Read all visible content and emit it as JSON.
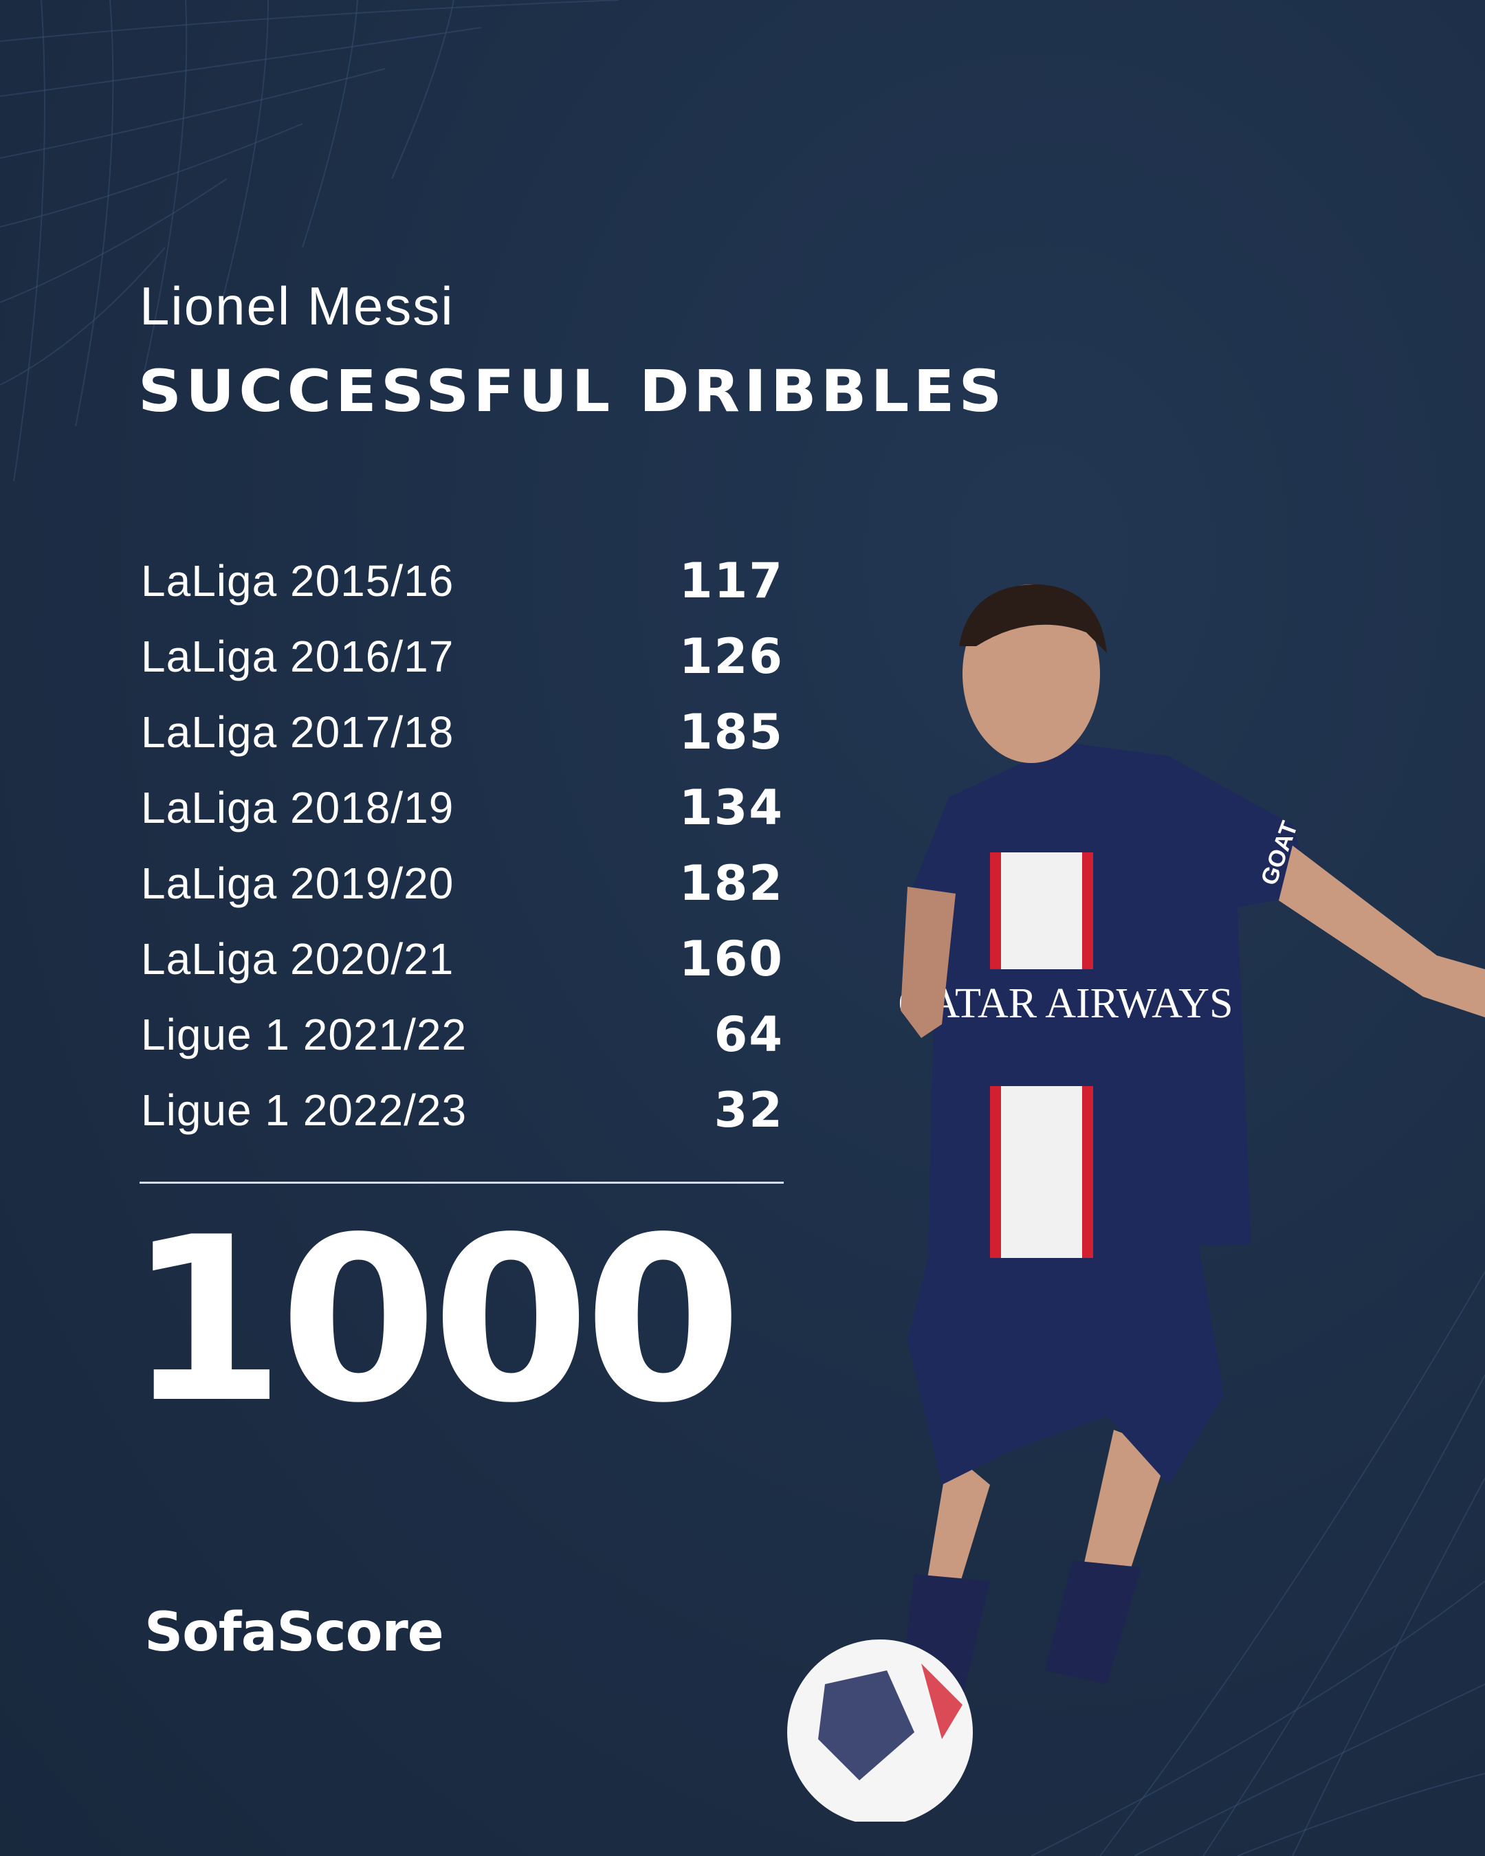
{
  "header": {
    "player_name": "Lionel Messi",
    "title": "SUCCESSFUL DRIBBLES"
  },
  "seasons": [
    {
      "label": "LaLiga 2015/16",
      "value": "117"
    },
    {
      "label": "LaLiga 2016/17",
      "value": "126"
    },
    {
      "label": "LaLiga 2017/18",
      "value": "185"
    },
    {
      "label": "LaLiga 2018/19",
      "value": "134"
    },
    {
      "label": "LaLiga 2019/20",
      "value": "182"
    },
    {
      "label": "LaLiga 2020/21",
      "value": "160"
    },
    {
      "label": "Ligue 1 2021/22",
      "value": "64"
    },
    {
      "label": "Ligue 1 2022/23",
      "value": "32"
    }
  ],
  "total": "1000",
  "brand": {
    "logo_text": "SofaScore"
  },
  "photo": {
    "jersey_sponsor": "QATAR AIRWAYS",
    "sleeve_text": "GOAT"
  },
  "colors": {
    "background": "#1d2f48",
    "text": "#ffffff",
    "jersey": "#1f2a5c",
    "stripe_red": "#d32030"
  }
}
